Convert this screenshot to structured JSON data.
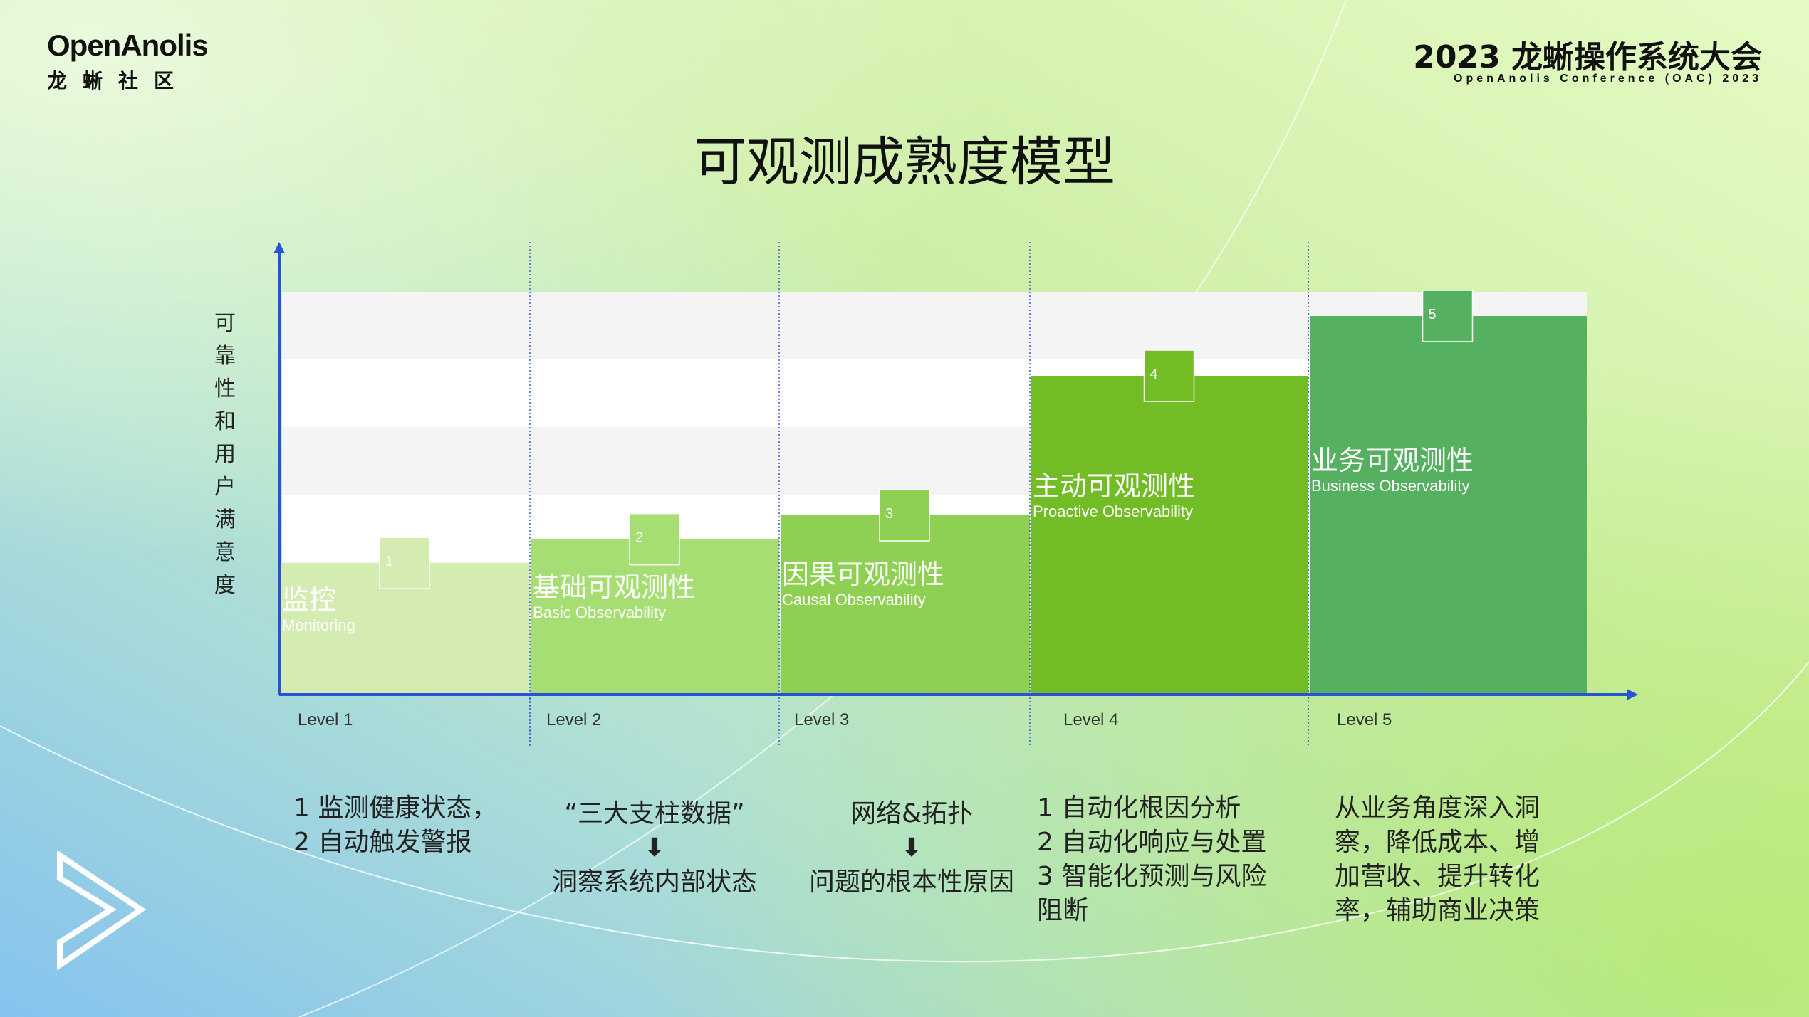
{
  "header": {
    "logo_text_en": "OpenAnolis",
    "logo_text_cn": "龙蜥社区",
    "conference_title": "2023 龙蜥操作系统大会",
    "conference_subtitle": "OpenAnolis Conference (OAC) 2023"
  },
  "slide_title": "可观测成熟度模型",
  "y_axis_title": "可靠性和用户满意度",
  "levels": [
    {
      "axis_label": "Level 1",
      "badge": "1",
      "name_cn": "监控",
      "name_en": "Monitoring",
      "height_fraction": 0.33,
      "color": "#d4ecb2",
      "description": "1 监测健康状态，\n2 自动触发警报"
    },
    {
      "axis_label": "Level 2",
      "badge": "2",
      "name_cn": "基础可观测性",
      "name_en": "Basic Observability",
      "height_fraction": 0.39,
      "color": "#a6de74",
      "description": "“三大支柱数据”\n⬇\n洞察系统内部状态"
    },
    {
      "axis_label": "Level 3",
      "badge": "3",
      "name_cn": "因果可观测性",
      "name_en": "Causal Observability",
      "height_fraction": 0.45,
      "color": "#8ed152",
      "description": "网络&拓扑\n⬇\n问题的根本性原因"
    },
    {
      "axis_label": "Level 4",
      "badge": "4",
      "name_cn": "主动可观测性",
      "name_en": "Proactive Observability",
      "height_fraction": 0.8,
      "color": "#72bc26",
      "description": "1 自动化根因分析\n2 自动化响应与处置\n3 智能化预测与风险\n阻断"
    },
    {
      "axis_label": "Level 5",
      "badge": "5",
      "name_cn": "业务可观测性",
      "name_en": "Business Observability",
      "height_fraction": 0.95,
      "color": "#55b160",
      "description": "从业务角度深入洞\n察，降低成本、增\n加营收、提升转化\n率，辅助商业决策"
    }
  ],
  "colors": {
    "axis": "#2a52d6",
    "band": "#f4f4f4"
  },
  "icons": {
    "brand_mark": "play-chevron-icon"
  }
}
